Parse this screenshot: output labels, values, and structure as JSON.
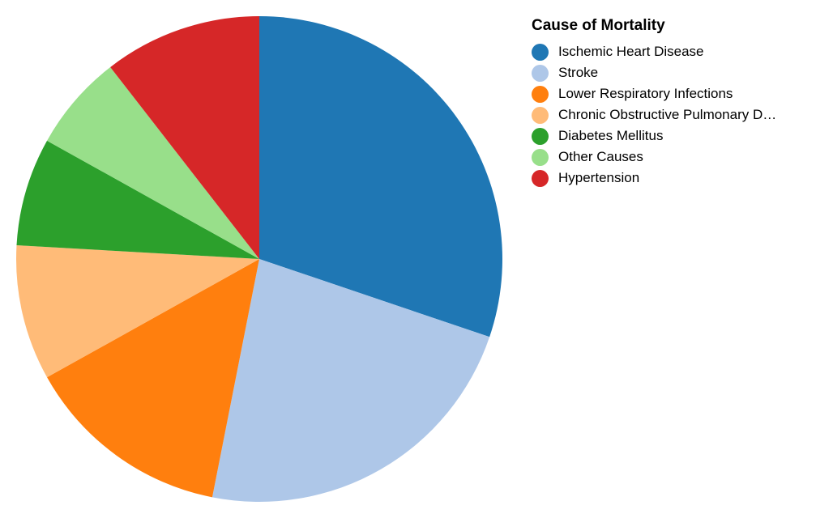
{
  "chart_data": {
    "type": "pie",
    "legend_title": "Cause of Mortality",
    "legend_position": "right",
    "categories": [
      "Ischemic Heart Disease",
      "Stroke",
      "Lower Respiratory Infections",
      "Chronic Obstructive Pulmonary D…",
      "Diabetes Mellitus",
      "Other Causes",
      "Hypertension"
    ],
    "values": [
      30.2,
      22.9,
      13.8,
      9.0,
      7.2,
      6.4,
      10.5
    ],
    "colors": [
      "#1f77b4",
      "#aec7e8",
      "#ff7f0e",
      "#ffbb78",
      "#2ca02c",
      "#98df8a",
      "#d62728"
    ],
    "start_angle_deg": 0,
    "direction": "clockwise"
  }
}
